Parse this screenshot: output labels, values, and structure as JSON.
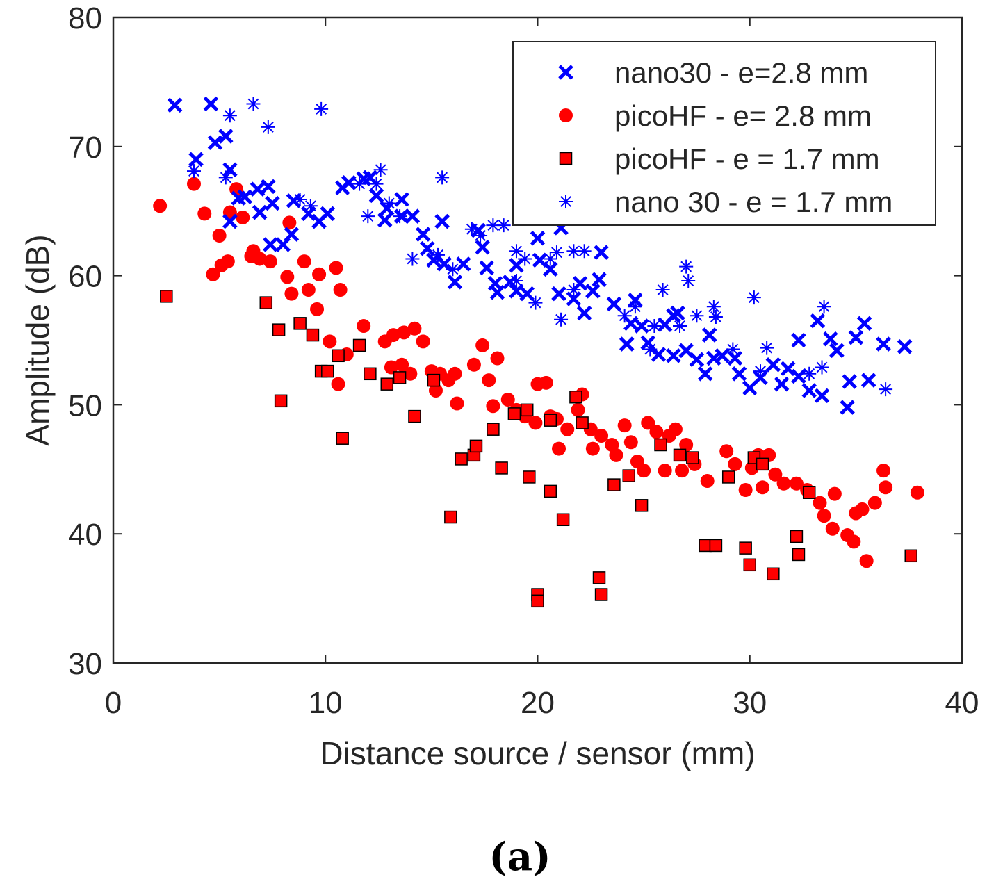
{
  "caption": "(a)",
  "chart_data": {
    "type": "scatter",
    "title": "",
    "xlabel": "Distance source / sensor (mm)",
    "ylabel": "Amplitude (dB)",
    "xlim": [
      0,
      40
    ],
    "ylim": [
      30,
      80
    ],
    "xticks": [
      0,
      10,
      20,
      30,
      40
    ],
    "yticks": [
      30,
      40,
      50,
      60,
      70,
      80
    ],
    "grid": false,
    "legend_position": "top-right",
    "series": [
      {
        "name": "nano30 - e=2.8 mm",
        "marker": "x",
        "color": "#0000FF",
        "points": [
          [
            2.9,
            73.2
          ],
          [
            4.6,
            73.3
          ],
          [
            3.9,
            69
          ],
          [
            4.8,
            70.3
          ],
          [
            5.3,
            70.8
          ],
          [
            5.5,
            68.2
          ],
          [
            5.5,
            64.2
          ],
          [
            5.9,
            66
          ],
          [
            6.2,
            66.1
          ],
          [
            6.8,
            66.7
          ],
          [
            7.3,
            66.9
          ],
          [
            6.9,
            64.9
          ],
          [
            7.5,
            65.6
          ],
          [
            7.4,
            62.4
          ],
          [
            8.0,
            62.4
          ],
          [
            8.4,
            63.2
          ],
          [
            8.5,
            65.8
          ],
          [
            9.2,
            64.8
          ],
          [
            9.7,
            64.2
          ],
          [
            10.1,
            64.8
          ],
          [
            10.8,
            66.8
          ],
          [
            11.1,
            67.2
          ],
          [
            11.8,
            67.5
          ],
          [
            12.1,
            67.6
          ],
          [
            12.4,
            66.2
          ],
          [
            12.9,
            65.2
          ],
          [
            12.8,
            64.3
          ],
          [
            13.6,
            64.6
          ],
          [
            13.6,
            65.9
          ],
          [
            14.1,
            64.6
          ],
          [
            14.6,
            63.2
          ],
          [
            14.8,
            62.1
          ],
          [
            15.1,
            61.2
          ],
          [
            15.5,
            64.2
          ],
          [
            15.6,
            60.9
          ],
          [
            16.1,
            59.5
          ],
          [
            16.5,
            60.9
          ],
          [
            17.2,
            63.5
          ],
          [
            17.4,
            62.2
          ],
          [
            17.6,
            60.6
          ],
          [
            18.0,
            59.4
          ],
          [
            18.1,
            58.7
          ],
          [
            18.7,
            59.5
          ],
          [
            19.0,
            58.8
          ],
          [
            19.0,
            60.8
          ],
          [
            19.5,
            58.6
          ],
          [
            20.0,
            62.9
          ],
          [
            20.1,
            61.2
          ],
          [
            20.6,
            60.5
          ],
          [
            21.1,
            63.7
          ],
          [
            21.0,
            58.6
          ],
          [
            21.7,
            58.2
          ],
          [
            22.0,
            59.4
          ],
          [
            22.2,
            57.1
          ],
          [
            22.6,
            58.8
          ],
          [
            22.9,
            59.7
          ],
          [
            23.0,
            61.8
          ],
          [
            23.6,
            57.8
          ],
          [
            24.2,
            54.7
          ],
          [
            24.4,
            56.3
          ],
          [
            24.6,
            58.1
          ],
          [
            24.9,
            56.1
          ],
          [
            25.2,
            54.8
          ],
          [
            25.7,
            53.9
          ],
          [
            26.0,
            56.2
          ],
          [
            26.4,
            56.9
          ],
          [
            26.6,
            57.1
          ],
          [
            26.4,
            53.8
          ],
          [
            27.0,
            54.2
          ],
          [
            27.5,
            53.5
          ],
          [
            27.9,
            52.4
          ],
          [
            28.1,
            55.4
          ],
          [
            28.3,
            53.6
          ],
          [
            28.7,
            53.8
          ],
          [
            29.3,
            53.6
          ],
          [
            29.5,
            52.4
          ],
          [
            30.0,
            51.3
          ],
          [
            30.5,
            52.1
          ],
          [
            31.1,
            53.1
          ],
          [
            31.5,
            51.6
          ],
          [
            31.8,
            52.8
          ],
          [
            32.3,
            55
          ],
          [
            32.3,
            52.2
          ],
          [
            32.8,
            51.1
          ],
          [
            33.2,
            56.5
          ],
          [
            33.4,
            50.7
          ],
          [
            33.8,
            55.1
          ],
          [
            34.1,
            54.2
          ],
          [
            34.7,
            51.8
          ],
          [
            34.6,
            49.8
          ],
          [
            35.0,
            55.2
          ],
          [
            35.4,
            56.3
          ],
          [
            35.6,
            51.9
          ],
          [
            36.3,
            54.7
          ],
          [
            37.3,
            54.5
          ]
        ]
      },
      {
        "name": "picoHF - e= 2.8 mm",
        "marker": "circle",
        "color": "#FF0000",
        "points": [
          [
            2.2,
            65.4
          ],
          [
            3.8,
            67.1
          ],
          [
            4.3,
            64.8
          ],
          [
            4.7,
            60.1
          ],
          [
            5.0,
            63.1
          ],
          [
            5.1,
            60.8
          ],
          [
            5.4,
            61.1
          ],
          [
            5.5,
            64.9
          ],
          [
            5.8,
            66.7
          ],
          [
            6.1,
            64.5
          ],
          [
            6.5,
            61.5
          ],
          [
            6.6,
            61.9
          ],
          [
            6.9,
            61.3
          ],
          [
            7.4,
            61.1
          ],
          [
            8.2,
            59.9
          ],
          [
            8.3,
            64.1
          ],
          [
            8.4,
            58.6
          ],
          [
            9.0,
            61.1
          ],
          [
            9.2,
            58.9
          ],
          [
            9.6,
            57.4
          ],
          [
            9.7,
            60.1
          ],
          [
            10.2,
            54.9
          ],
          [
            10.5,
            60.6
          ],
          [
            10.7,
            58.9
          ],
          [
            10.6,
            51.6
          ],
          [
            11.0,
            53.9
          ],
          [
            11.8,
            56.1
          ],
          [
            12.8,
            54.9
          ],
          [
            13.2,
            55.4
          ],
          [
            13.7,
            55.6
          ],
          [
            14.2,
            55.9
          ],
          [
            14.6,
            54.9
          ],
          [
            13.1,
            52.9
          ],
          [
            13.6,
            53.1
          ],
          [
            14.0,
            52.4
          ],
          [
            15.0,
            52.6
          ],
          [
            15.2,
            51.1
          ],
          [
            15.4,
            52.4
          ],
          [
            15.8,
            51.9
          ],
          [
            16.1,
            52.4
          ],
          [
            16.2,
            50.1
          ],
          [
            17.0,
            53.1
          ],
          [
            17.4,
            54.6
          ],
          [
            17.7,
            51.9
          ],
          [
            18.1,
            53.6
          ],
          [
            17.9,
            49.9
          ],
          [
            18.6,
            50.4
          ],
          [
            19.0,
            49.6
          ],
          [
            19.4,
            49.1
          ],
          [
            19.9,
            48.6
          ],
          [
            20.0,
            51.6
          ],
          [
            20.4,
            51.7
          ],
          [
            20.6,
            49.1
          ],
          [
            20.9,
            48.9
          ],
          [
            21.0,
            46.6
          ],
          [
            21.4,
            48.1
          ],
          [
            21.9,
            49.6
          ],
          [
            22.1,
            50.8
          ],
          [
            22.6,
            46.6
          ],
          [
            22.5,
            48.1
          ],
          [
            23.0,
            47.6
          ],
          [
            23.5,
            46.9
          ],
          [
            23.7,
            46.1
          ],
          [
            24.1,
            48.4
          ],
          [
            24.4,
            47.1
          ],
          [
            24.7,
            45.6
          ],
          [
            25.0,
            44.9
          ],
          [
            25.2,
            48.6
          ],
          [
            25.6,
            47.9
          ],
          [
            26.0,
            44.9
          ],
          [
            26.2,
            47.6
          ],
          [
            26.5,
            48.1
          ],
          [
            26.8,
            44.9
          ],
          [
            27.0,
            46.9
          ],
          [
            27.4,
            45.4
          ],
          [
            28.0,
            44.1
          ],
          [
            28.9,
            46.4
          ],
          [
            29.3,
            45.4
          ],
          [
            29.8,
            43.4
          ],
          [
            30.1,
            45.1
          ],
          [
            30.4,
            46.1
          ],
          [
            30.6,
            43.6
          ],
          [
            30.9,
            46.1
          ],
          [
            31.2,
            44.6
          ],
          [
            31.6,
            43.9
          ],
          [
            32.2,
            43.9
          ],
          [
            32.7,
            43.4
          ],
          [
            33.3,
            42.4
          ],
          [
            33.5,
            41.4
          ],
          [
            33.9,
            40.4
          ],
          [
            34.0,
            43.1
          ],
          [
            34.6,
            39.9
          ],
          [
            34.9,
            39.4
          ],
          [
            35.0,
            41.6
          ],
          [
            35.3,
            41.9
          ],
          [
            35.5,
            37.9
          ],
          [
            35.9,
            42.4
          ],
          [
            36.3,
            44.9
          ],
          [
            36.4,
            43.6
          ],
          [
            37.9,
            43.2
          ]
        ]
      },
      {
        "name": "picoHF - e = 1.7 mm",
        "marker": "square",
        "color": "#FF0000",
        "points": [
          [
            2.5,
            58.4
          ],
          [
            7.2,
            57.9
          ],
          [
            7.8,
            55.8
          ],
          [
            7.9,
            50.3
          ],
          [
            8.8,
            56.3
          ],
          [
            9.4,
            55.4
          ],
          [
            9.8,
            52.6
          ],
          [
            10.1,
            52.6
          ],
          [
            10.6,
            53.8
          ],
          [
            10.8,
            47.4
          ],
          [
            11.6,
            54.6
          ],
          [
            12.1,
            52.4
          ],
          [
            12.9,
            51.6
          ],
          [
            13.5,
            52.1
          ],
          [
            14.2,
            49.1
          ],
          [
            15.1,
            51.9
          ],
          [
            15.9,
            41.3
          ],
          [
            16.4,
            45.8
          ],
          [
            17.0,
            46.1
          ],
          [
            17.1,
            46.8
          ],
          [
            17.9,
            48.1
          ],
          [
            18.3,
            45.1
          ],
          [
            18.9,
            49.3
          ],
          [
            19.5,
            49.6
          ],
          [
            19.6,
            44.4
          ],
          [
            20.0,
            35.3
          ],
          [
            20.0,
            34.8
          ],
          [
            20.6,
            48.8
          ],
          [
            20.6,
            43.3
          ],
          [
            21.2,
            41.1
          ],
          [
            21.8,
            50.6
          ],
          [
            22.1,
            48.6
          ],
          [
            22.9,
            36.6
          ],
          [
            23.0,
            35.3
          ],
          [
            23.6,
            43.8
          ],
          [
            24.3,
            44.5
          ],
          [
            24.9,
            42.2
          ],
          [
            25.8,
            46.9
          ],
          [
            26.7,
            46.1
          ],
          [
            27.3,
            45.9
          ],
          [
            27.9,
            39.1
          ],
          [
            28.4,
            39.1
          ],
          [
            29.0,
            44.4
          ],
          [
            29.8,
            38.9
          ],
          [
            30.0,
            37.6
          ],
          [
            30.2,
            45.9
          ],
          [
            30.6,
            45.4
          ],
          [
            31.1,
            36.9
          ],
          [
            32.2,
            39.8
          ],
          [
            32.3,
            38.4
          ],
          [
            32.8,
            43.2
          ],
          [
            37.6,
            38.3
          ]
        ]
      },
      {
        "name": "nano 30 - e = 1.7 mm",
        "marker": "asterisk",
        "color": "#0000FF",
        "points": [
          [
            3.8,
            68.1
          ],
          [
            5.3,
            67.6
          ],
          [
            5.5,
            72.4
          ],
          [
            6.6,
            73.3
          ],
          [
            7.3,
            71.5
          ],
          [
            8.8,
            65.9
          ],
          [
            9.3,
            65.4
          ],
          [
            9.8,
            72.9
          ],
          [
            11.6,
            67.1
          ],
          [
            12.0,
            64.6
          ],
          [
            12.4,
            67.1
          ],
          [
            12.6,
            68.2
          ],
          [
            13.0,
            65.6
          ],
          [
            13.5,
            64.6
          ],
          [
            14.1,
            61.3
          ],
          [
            15.3,
            61.6
          ],
          [
            15.5,
            67.6
          ],
          [
            16.0,
            60.5
          ],
          [
            16.9,
            63.6
          ],
          [
            17.3,
            63.1
          ],
          [
            17.9,
            63.9
          ],
          [
            18.4,
            63.9
          ],
          [
            19.0,
            59.6
          ],
          [
            19.0,
            61.9
          ],
          [
            19.4,
            61.3
          ],
          [
            19.9,
            57.9
          ],
          [
            20.6,
            61.3
          ],
          [
            20.9,
            61.8
          ],
          [
            21.1,
            56.6
          ],
          [
            21.7,
            61.9
          ],
          [
            21.7,
            58.9
          ],
          [
            22.2,
            61.9
          ],
          [
            24.1,
            56.9
          ],
          [
            24.6,
            57.6
          ],
          [
            25.3,
            54.3
          ],
          [
            25.5,
            56.1
          ],
          [
            25.9,
            58.9
          ],
          [
            26.7,
            56.1
          ],
          [
            27.0,
            60.7
          ],
          [
            27.1,
            59.6
          ],
          [
            27.5,
            56.9
          ],
          [
            28.3,
            57.6
          ],
          [
            28.4,
            56.8
          ],
          [
            29.2,
            54.3
          ],
          [
            30.2,
            58.3
          ],
          [
            30.5,
            52.6
          ],
          [
            30.8,
            54.4
          ],
          [
            32.8,
            52.4
          ],
          [
            33.4,
            52.9
          ],
          [
            33.5,
            57.6
          ],
          [
            36.4,
            51.2
          ]
        ]
      }
    ]
  }
}
